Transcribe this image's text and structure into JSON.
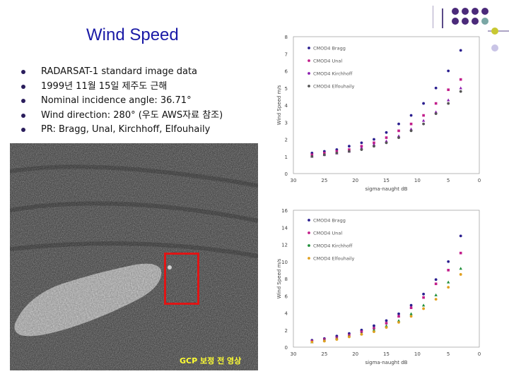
{
  "slide": {
    "title": "Wind Speed",
    "bullets": [
      "RADARSAT-1 standard image data",
      "1999년 11월 15일 제주도 근해",
      "Nominal incidence angle: 36.71°",
      "Wind direction: 280° (우도 AWS자료 참조)",
      "PR: Bragg, Unal, Kirchhoff, Elfouhaily"
    ],
    "image_caption": "GCP 보정 전 영상"
  },
  "colors": {
    "title": "#1a1aa6",
    "bullet_dot": "#2a1d5c",
    "roi_box": "#e01515",
    "caption": "#ffff33",
    "deco_purple": "#4b2a7a",
    "deco_teal": "#7aa7a5",
    "deco_yellow": "#c8c832",
    "deco_lavender": "#c9c4e6"
  },
  "chart_data": [
    {
      "type": "scatter",
      "xlabel": "sigma-naught dB",
      "ylabel": "Wind Speed m/s",
      "xlim": [
        30,
        0
      ],
      "ylim": [
        0,
        8
      ],
      "xticks": [
        "30",
        "25",
        "20",
        "15",
        "10",
        "5",
        "0"
      ],
      "yticks": [
        "0",
        "1",
        "2",
        "3",
        "4",
        "5",
        "6",
        "7",
        "8"
      ],
      "legend": [
        "CMOD4 Bragg",
        "CMOD4 Unal",
        "CMOD4 Kirchhoff",
        "CMOD4 Elfouhaily"
      ],
      "series": [
        {
          "name": "CMOD4 Bragg",
          "color": "#2b1f8f",
          "marker": "circle",
          "x": [
            27,
            25,
            23,
            21,
            19,
            17,
            15,
            13,
            11,
            9,
            7,
            5,
            3
          ],
          "y": [
            1.2,
            1.3,
            1.4,
            1.6,
            1.8,
            2.0,
            2.4,
            2.9,
            3.4,
            4.1,
            5.0,
            6.0,
            7.2
          ]
        },
        {
          "name": "CMOD4 Unal",
          "color": "#c21e8a",
          "marker": "square",
          "x": [
            27,
            25,
            23,
            21,
            19,
            17,
            15,
            13,
            11,
            9,
            7,
            5,
            3
          ],
          "y": [
            1.1,
            1.2,
            1.3,
            1.4,
            1.6,
            1.8,
            2.1,
            2.5,
            2.9,
            3.4,
            4.1,
            4.9,
            5.5
          ]
        },
        {
          "name": "CMOD4 Kirchhoff",
          "color": "#8c1fb0",
          "marker": "triangle",
          "x": [
            27,
            25,
            23,
            21,
            19,
            17,
            15,
            13,
            11,
            9,
            7,
            5,
            3
          ],
          "y": [
            1.0,
            1.1,
            1.2,
            1.3,
            1.5,
            1.7,
            1.9,
            2.2,
            2.6,
            3.1,
            3.6,
            4.3,
            5.0
          ]
        },
        {
          "name": "CMOD4 Elfouhaily",
          "color": "#555555",
          "marker": "circle",
          "x": [
            27,
            25,
            23,
            21,
            19,
            17,
            15,
            13,
            11,
            9,
            7,
            5,
            3
          ],
          "y": [
            1.0,
            1.1,
            1.2,
            1.3,
            1.4,
            1.6,
            1.8,
            2.1,
            2.5,
            2.9,
            3.5,
            4.1,
            4.8
          ]
        }
      ]
    },
    {
      "type": "scatter",
      "xlabel": "sigma-naught dB",
      "ylabel": "Wind Speed m/s",
      "xlim": [
        30,
        0
      ],
      "ylim": [
        0,
        16
      ],
      "xticks": [
        "30",
        "25",
        "20",
        "15",
        "10",
        "5",
        "0"
      ],
      "yticks": [
        "0",
        "2",
        "4",
        "6",
        "8",
        "10",
        "12",
        "14",
        "16"
      ],
      "legend": [
        "CMOD4 Bragg",
        "CMOD4 Unal",
        "CMOD4 Kirchhoff",
        "CMOD4 Elfouhaily"
      ],
      "series": [
        {
          "name": "CMOD4 Bragg",
          "color": "#2b1f8f",
          "marker": "circle",
          "x": [
            27,
            25,
            23,
            21,
            19,
            17,
            15,
            13,
            11,
            9,
            7,
            5,
            3
          ],
          "y": [
            0.8,
            1.0,
            1.3,
            1.6,
            2.0,
            2.5,
            3.1,
            3.9,
            4.9,
            6.2,
            7.9,
            10.0,
            13.0
          ]
        },
        {
          "name": "CMOD4 Unal",
          "color": "#c21e8a",
          "marker": "square",
          "x": [
            27,
            25,
            23,
            21,
            19,
            17,
            15,
            13,
            11,
            9,
            7,
            5,
            3
          ],
          "y": [
            0.7,
            0.9,
            1.1,
            1.4,
            1.8,
            2.2,
            2.8,
            3.6,
            4.6,
            5.8,
            7.4,
            9.0,
            11.0
          ]
        },
        {
          "name": "CMOD4 Kirchhoff",
          "color": "#1f8f3a",
          "marker": "triangle",
          "x": [
            27,
            25,
            23,
            21,
            19,
            17,
            15,
            13,
            11,
            9,
            7,
            5,
            3
          ],
          "y": [
            0.6,
            0.8,
            1.0,
            1.3,
            1.6,
            2.0,
            2.5,
            3.1,
            3.9,
            4.9,
            6.1,
            7.6,
            9.2
          ]
        },
        {
          "name": "CMOD4 Elfouhaily",
          "color": "#e0a020",
          "marker": "circle",
          "x": [
            27,
            25,
            23,
            21,
            19,
            17,
            15,
            13,
            11,
            9,
            7,
            5,
            3
          ],
          "y": [
            0.6,
            0.7,
            0.9,
            1.2,
            1.5,
            1.8,
            2.3,
            2.9,
            3.6,
            4.5,
            5.6,
            7.0,
            8.5
          ]
        }
      ]
    }
  ]
}
